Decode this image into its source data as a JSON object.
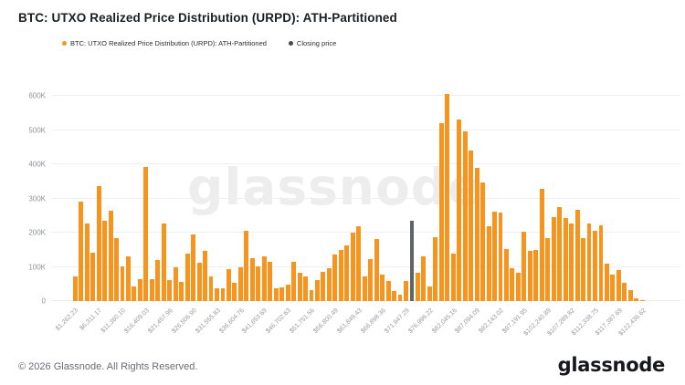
{
  "title": "BTC: UTXO Realized Price Distribution (URPD): ATH-Partitioned",
  "legend": {
    "urpd": {
      "label": "BTC: UTXO Realized Price Distribution (URPD): ATH-Partitioned",
      "color": "#f7941e"
    },
    "closing": {
      "label": "Closing price",
      "color": "#44474c"
    }
  },
  "watermark": "glassnode",
  "footer": {
    "copyright": "© 2026 Glassnode. All Rights Reserved.",
    "brand": "glassnode"
  },
  "chart_data": {
    "type": "bar",
    "title": "BTC: UTXO Realized Price Distribution (URPD): ATH-Partitioned",
    "xlabel": "",
    "ylabel": "",
    "ylim": [
      0,
      600000
    ],
    "grid": true,
    "legend_position": "top-left",
    "bar_color": "#f7941e",
    "closing_price_color": "#606368",
    "closing_price_index": 57,
    "x_label_every": 4,
    "ytick_labels": [
      "0",
      "100K",
      "200K",
      "300K",
      "400K",
      "500K",
      "600K"
    ],
    "ytick_values": [
      0,
      100000,
      200000,
      300000,
      400000,
      500000,
      600000
    ],
    "xtick_labels": [
      "$1,262.23",
      "$6,311.17",
      "$11,360.10",
      "$16,409.03",
      "$21,457.96",
      "$26,506.90",
      "$31,555.83",
      "$36,604.76",
      "$41,653.69",
      "$46,702.63",
      "$51,751.56",
      "$56,800.49",
      "$61,849.43",
      "$66,898.36",
      "$71,947.29",
      "$76,996.22",
      "$82,045.16",
      "$87,094.09",
      "$92,143.02",
      "$97,191.95",
      "$102,240.89",
      "$107,289.82",
      "$112,338.75",
      "$117,387.69",
      "$122,436.62"
    ],
    "values": [
      72000,
      290000,
      228000,
      141000,
      336000,
      236000,
      264000,
      185000,
      101000,
      132000,
      42000,
      64000,
      393000,
      64000,
      119000,
      228000,
      61000,
      100000,
      55000,
      140000,
      196000,
      113000,
      148000,
      73000,
      37000,
      38000,
      93000,
      53000,
      100000,
      205000,
      126000,
      102000,
      131000,
      115000,
      37000,
      40000,
      47000,
      115000,
      83000,
      71000,
      31000,
      62000,
      86000,
      95000,
      135000,
      150000,
      162000,
      200000,
      218000,
      73000,
      122000,
      182000,
      77000,
      58000,
      30000,
      20000,
      60000,
      235000,
      82000,
      131000,
      42000,
      187000,
      520000,
      605000,
      140000,
      530000,
      497000,
      440000,
      390000,
      348000,
      220000,
      262000,
      258000,
      151000,
      96000,
      83000,
      203000,
      147000,
      149000,
      327000,
      184000,
      246000,
      274000,
      242000,
      227000,
      268000,
      184000,
      228000,
      206000,
      222000,
      109000,
      77000,
      91000,
      53000,
      31000,
      9000,
      2000
    ]
  }
}
